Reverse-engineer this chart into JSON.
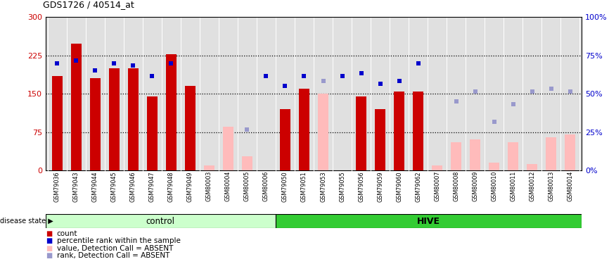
{
  "title": "GDS1726 / 40514_at",
  "samples": [
    "GSM79036",
    "GSM79043",
    "GSM79044",
    "GSM79045",
    "GSM79046",
    "GSM79047",
    "GSM79048",
    "GSM79049",
    "GSM80003",
    "GSM80004",
    "GSM80005",
    "GSM80006",
    "GSM79050",
    "GSM79051",
    "GSM79053",
    "GSM79055",
    "GSM79056",
    "GSM79059",
    "GSM79060",
    "GSM79062",
    "GSM80007",
    "GSM80008",
    "GSM80009",
    "GSM80010",
    "GSM80011",
    "GSM80012",
    "GSM80013",
    "GSM80014"
  ],
  "control_count": 12,
  "hive_count": 16,
  "red_bar_values": [
    185,
    248,
    180,
    200,
    200,
    145,
    228,
    165,
    null,
    null,
    null,
    null,
    120,
    160,
    null,
    null,
    145,
    120,
    155,
    155,
    null,
    null,
    null,
    null,
    null,
    null,
    null,
    null
  ],
  "pink_bar_values": [
    null,
    null,
    null,
    null,
    null,
    null,
    null,
    null,
    10,
    85,
    28,
    null,
    null,
    null,
    150,
    null,
    null,
    null,
    null,
    null,
    10,
    55,
    60,
    15,
    55,
    12,
    65,
    70
  ],
  "blue_sq_values": [
    210,
    215,
    196,
    210,
    205,
    185,
    210,
    null,
    null,
    null,
    null,
    185,
    165,
    185,
    null,
    185,
    190,
    170,
    175,
    210,
    null,
    null,
    null,
    null,
    null,
    null,
    null,
    null
  ],
  "lblue_sq_values": [
    null,
    null,
    null,
    null,
    null,
    null,
    null,
    null,
    null,
    null,
    80,
    null,
    null,
    null,
    175,
    null,
    null,
    null,
    null,
    null,
    null,
    135,
    155,
    95,
    130,
    155,
    160,
    155
  ],
  "ylim_left": [
    0,
    300
  ],
  "ylim_right": [
    0,
    100
  ],
  "yticks_left": [
    0,
    75,
    150,
    225,
    300
  ],
  "yticks_right": [
    0,
    25,
    50,
    75,
    100
  ],
  "ytick_labels_left": [
    "0",
    "75",
    "150",
    "225",
    "300"
  ],
  "ytick_labels_right": [
    "0%",
    "25%",
    "50%",
    "75%",
    "100%"
  ],
  "hline_values": [
    75,
    150,
    225
  ],
  "bar_color_red": "#cc0000",
  "bar_color_pink": "#ffbbbb",
  "sq_color_blue": "#0000cc",
  "sq_color_lblue": "#9999cc",
  "bg_color_plot": "#e0e0e0",
  "bg_color_xtick": "#d0d0d0",
  "bg_color_control": "#ccffcc",
  "bg_color_hive": "#33cc33",
  "label_control": "control",
  "label_hive": "HIVE",
  "legend_entries": [
    "count",
    "percentile rank within the sample",
    "value, Detection Call = ABSENT",
    "rank, Detection Call = ABSENT"
  ],
  "legend_colors": [
    "#cc0000",
    "#0000cc",
    "#ffbbbb",
    "#9999cc"
  ],
  "disease_state_label": "disease state"
}
